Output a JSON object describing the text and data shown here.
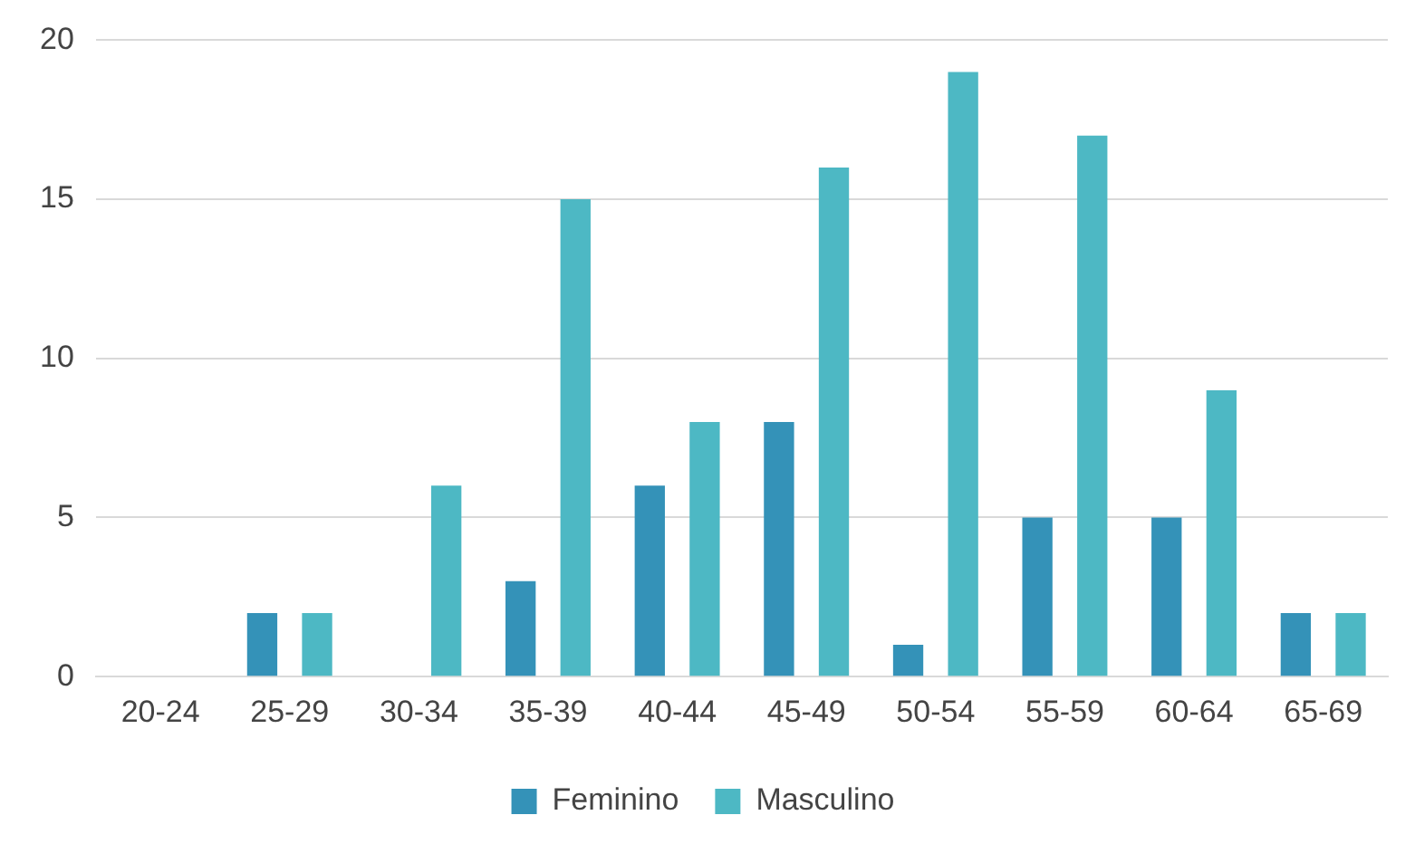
{
  "chart_data": {
    "type": "bar",
    "categories": [
      "20-24",
      "25-29",
      "30-34",
      "35-39",
      "40-44",
      "45-49",
      "50-54",
      "55-59",
      "60-64",
      "65-69"
    ],
    "series": [
      {
        "name": "Feminino",
        "color": "#3492b8",
        "values": [
          0,
          2,
          0,
          3,
          6,
          8,
          1,
          5,
          5,
          2
        ]
      },
      {
        "name": "Masculino",
        "color": "#4db8c4",
        "values": [
          0,
          2,
          6,
          15,
          8,
          16,
          19,
          17,
          9,
          2
        ]
      }
    ],
    "ylim": [
      0,
      20
    ],
    "yticks": [
      0,
      5,
      10,
      15,
      20
    ],
    "grid": "y",
    "legend": "bottom"
  }
}
